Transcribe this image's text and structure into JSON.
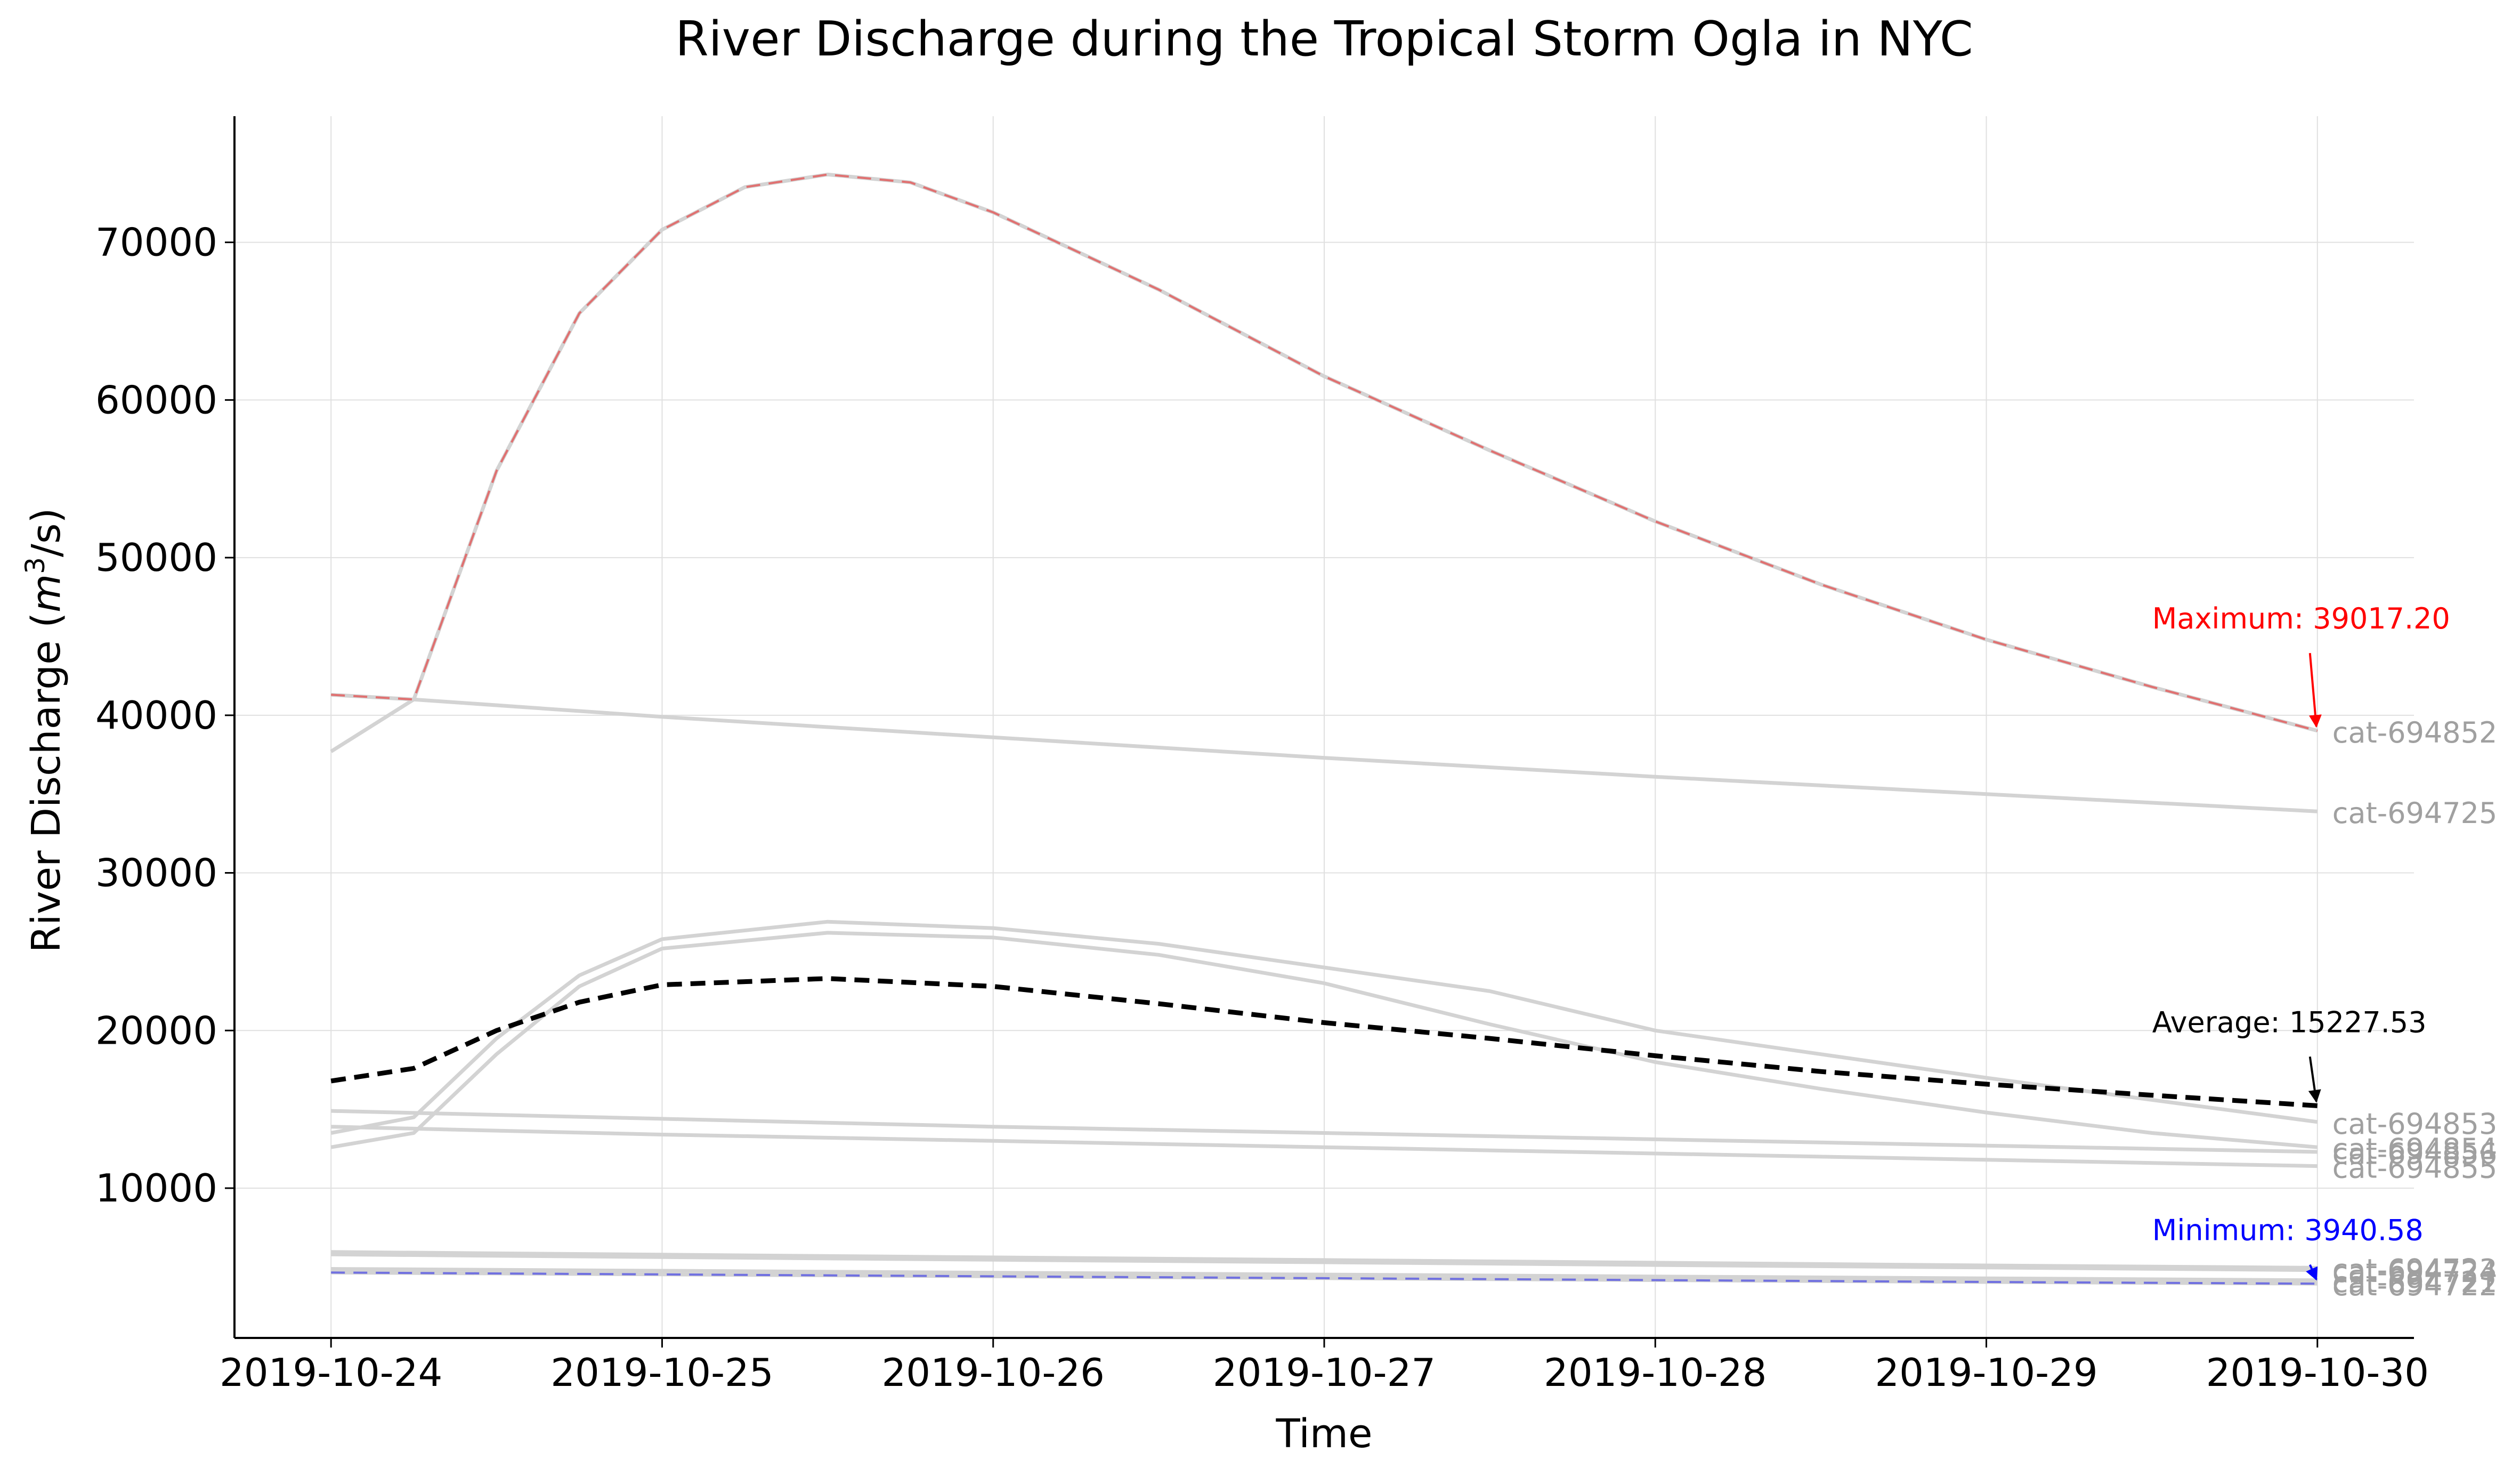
{
  "chart_data": {
    "type": "line",
    "title": "River Discharge during the Tropical Storm Ogla in NYC",
    "xlabel": "Time",
    "ylabel_text": "River Discharge (",
    "ylabel_unit": "m",
    "ylabel_sup": "3",
    "ylabel_unit_tail": "/s)",
    "x_tick_labels": [
      "2019-10-24",
      "2019-10-25",
      "2019-10-26",
      "2019-10-27",
      "2019-10-28",
      "2019-10-29",
      "2019-10-30"
    ],
    "x_ticks": [
      "2019-10-24",
      "2019-10-25",
      "2019-10-26",
      "2019-10-27",
      "2019-10-28",
      "2019-10-29",
      "2019-10-30"
    ],
    "xlim": [
      "2019-10-23T17:00",
      "2019-10-30T07:00"
    ],
    "y_ticks": [
      10000,
      20000,
      30000,
      40000,
      50000,
      60000,
      70000
    ],
    "y_tick_labels": [
      "10000",
      "20000",
      "30000",
      "40000",
      "50000",
      "60000",
      "70000"
    ],
    "ylim": [
      500,
      78000
    ],
    "grid": true,
    "colors": {
      "series": "#d3d3d3",
      "series_label": "#a0a0a0",
      "average": "#000000",
      "maximum": "#ff0000",
      "maximum_line": "#e07070",
      "minimum": "#0000ff",
      "minimum_line": "#7070e0",
      "grid": "#e0e0e0",
      "axis": "#000000"
    },
    "series": [
      {
        "name": "cat-694852",
        "x": [
          "2019-10-24T00:00",
          "2019-10-24T06:00",
          "2019-10-24T12:00",
          "2019-10-24T18:00",
          "2019-10-25T00:00",
          "2019-10-25T06:00",
          "2019-10-25T12:00",
          "2019-10-25T18:00",
          "2019-10-26T00:00",
          "2019-10-26T12:00",
          "2019-10-27T00:00",
          "2019-10-27T12:00",
          "2019-10-28T00:00",
          "2019-10-28T12:00",
          "2019-10-29T00:00",
          "2019-10-29T12:00",
          "2019-10-30T00:00"
        ],
        "y": [
          41300,
          41000,
          55500,
          65500,
          70800,
          73500,
          74300,
          73800,
          71900,
          67000,
          61500,
          56800,
          52300,
          48300,
          44800,
          41800,
          39017.2
        ]
      },
      {
        "name": "cat-694725",
        "x": [
          "2019-10-24T00:00",
          "2019-10-24T06:00",
          "2019-10-25T00:00",
          "2019-10-26T00:00",
          "2019-10-27T00:00",
          "2019-10-28T00:00",
          "2019-10-29T00:00",
          "2019-10-30T00:00"
        ],
        "y": [
          37700,
          41000,
          39900,
          38600,
          37300,
          36100,
          35000,
          33900
        ]
      },
      {
        "name": "cat-694853",
        "x": [
          "2019-10-24T00:00",
          "2019-10-24T06:00",
          "2019-10-24T12:00",
          "2019-10-24T18:00",
          "2019-10-25T00:00",
          "2019-10-25T12:00",
          "2019-10-26T00:00",
          "2019-10-26T12:00",
          "2019-10-27T00:00",
          "2019-10-27T12:00",
          "2019-10-28T00:00",
          "2019-10-28T12:00",
          "2019-10-29T00:00",
          "2019-10-29T12:00",
          "2019-10-30T00:00"
        ],
        "y": [
          13500,
          14500,
          19500,
          23500,
          25800,
          26900,
          26500,
          25500,
          24000,
          22500,
          20000,
          18500,
          17000,
          15600,
          14200
        ]
      },
      {
        "name": "cat-694854",
        "x": [
          "2019-10-24T00:00",
          "2019-10-24T06:00",
          "2019-10-24T12:00",
          "2019-10-24T18:00",
          "2019-10-25T00:00",
          "2019-10-25T12:00",
          "2019-10-26T00:00",
          "2019-10-26T12:00",
          "2019-10-27T00:00",
          "2019-10-27T12:00",
          "2019-10-28T00:00",
          "2019-10-28T12:00",
          "2019-10-29T00:00",
          "2019-10-29T12:00",
          "2019-10-30T00:00"
        ],
        "y": [
          12600,
          13500,
          18500,
          22800,
          25200,
          26200,
          25900,
          24800,
          23000,
          20400,
          18000,
          16300,
          14800,
          13500,
          12600
        ]
      },
      {
        "name": "cat-694856",
        "x": [
          "2019-10-24T00:00",
          "2019-10-25T00:00",
          "2019-10-26T00:00",
          "2019-10-27T00:00",
          "2019-10-28T00:00",
          "2019-10-29T00:00",
          "2019-10-30T00:00"
        ],
        "y": [
          14900,
          14400,
          13900,
          13500,
          13100,
          12700,
          12300
        ]
      },
      {
        "name": "cat-694855",
        "x": [
          "2019-10-24T00:00",
          "2019-10-25T00:00",
          "2019-10-26T00:00",
          "2019-10-27T00:00",
          "2019-10-28T00:00",
          "2019-10-29T00:00",
          "2019-10-30T00:00"
        ],
        "y": [
          13900,
          13400,
          13000,
          12600,
          12200,
          11800,
          11400
        ]
      },
      {
        "name": "cat-694723",
        "x": [
          "2019-10-24T00:00",
          "2019-10-25T00:00",
          "2019-10-26T00:00",
          "2019-10-27T00:00",
          "2019-10-28T00:00",
          "2019-10-29T00:00",
          "2019-10-30T00:00"
        ],
        "y": [
          5950,
          5780,
          5610,
          5440,
          5270,
          5100,
          4950
        ]
      },
      {
        "name": "cat-694724",
        "x": [
          "2019-10-24T00:00",
          "2019-10-25T00:00",
          "2019-10-26T00:00",
          "2019-10-27T00:00",
          "2019-10-28T00:00",
          "2019-10-29T00:00",
          "2019-10-30T00:00"
        ],
        "y": [
          5800,
          5630,
          5460,
          5300,
          5130,
          4970,
          4800
        ]
      },
      {
        "name": "cat-694721",
        "x": [
          "2019-10-24T00:00",
          "2019-10-25T00:00",
          "2019-10-26T00:00",
          "2019-10-27T00:00",
          "2019-10-28T00:00",
          "2019-10-29T00:00",
          "2019-10-30T00:00"
        ],
        "y": [
          4880,
          4760,
          4640,
          4520,
          4400,
          4280,
          4160
        ]
      },
      {
        "name": "cat-694722",
        "x": [
          "2019-10-24T00:00",
          "2019-10-25T00:00",
          "2019-10-26T00:00",
          "2019-10-27T00:00",
          "2019-10-28T00:00",
          "2019-10-29T00:00",
          "2019-10-30T00:00"
        ],
        "y": [
          4650,
          4530,
          4410,
          4290,
          4170,
          4050,
          3940.58
        ]
      }
    ],
    "label_order": [
      "cat-694852",
      "cat-694725",
      "cat-694853",
      "cat-694854",
      "cat-694856",
      "cat-694855",
      "cat-694723",
      "cat-694724",
      "cat-694721",
      "cat-694722"
    ],
    "average": {
      "x": [
        "2019-10-24T00:00",
        "2019-10-24T06:00",
        "2019-10-24T12:00",
        "2019-10-24T18:00",
        "2019-10-25T00:00",
        "2019-10-25T12:00",
        "2019-10-26T00:00",
        "2019-10-26T12:00",
        "2019-10-27T00:00",
        "2019-10-27T12:00",
        "2019-10-28T00:00",
        "2019-10-28T12:00",
        "2019-10-29T00:00",
        "2019-10-29T12:00",
        "2019-10-30T00:00"
      ],
      "y": [
        16800,
        17600,
        20000,
        21800,
        22900,
        23300,
        22800,
        21700,
        20500,
        19500,
        18400,
        17400,
        16600,
        15900,
        15227.53
      ]
    },
    "maximum_series": "cat-694852",
    "minimum_series": "cat-694722",
    "annotations": [
      {
        "id": "maximum",
        "text": "Maximum: 39017.20",
        "x": "2019-10-30T00:00",
        "y": 39017.2,
        "text_y": 45500,
        "color": "#ff0000"
      },
      {
        "id": "average",
        "text": "Average: 15227.53",
        "x": "2019-10-30T00:00",
        "y": 15227.53,
        "text_y": 19900,
        "color": "#000000"
      },
      {
        "id": "minimum",
        "text": "Minimum: 3940.58",
        "x": "2019-10-30T00:00",
        "y": 3940.58,
        "text_y": 6700,
        "color": "#0000ff"
      }
    ]
  }
}
